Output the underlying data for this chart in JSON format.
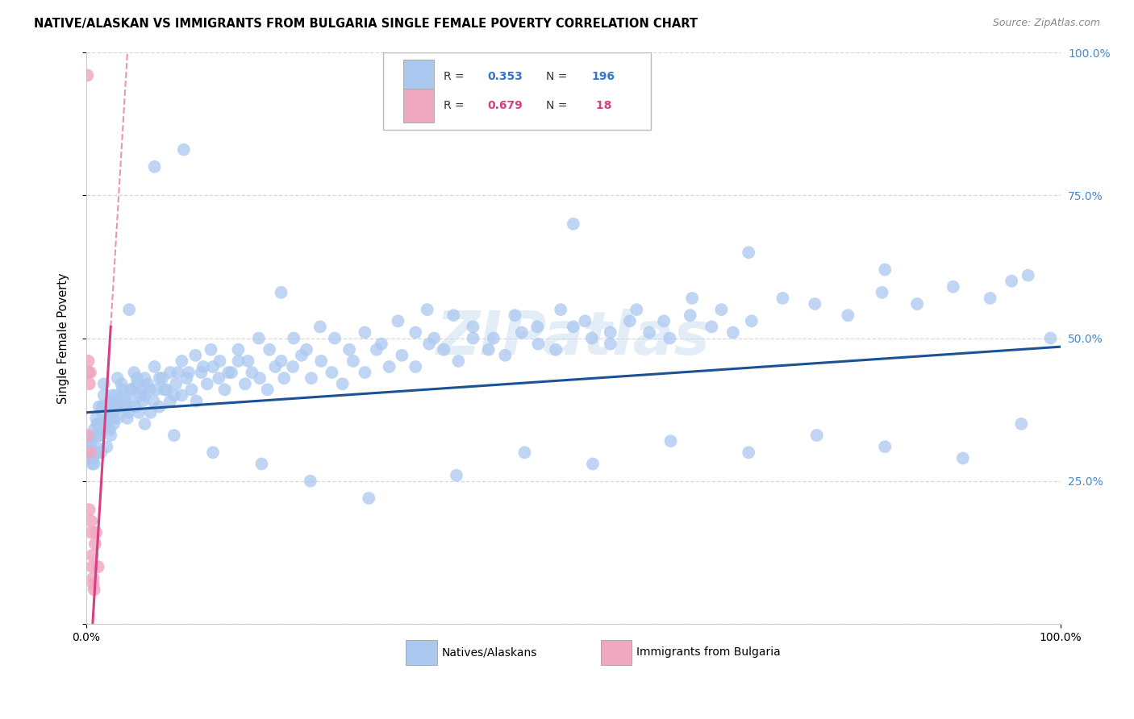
{
  "title": "NATIVE/ALASKAN VS IMMIGRANTS FROM BULGARIA SINGLE FEMALE POVERTY CORRELATION CHART",
  "source": "Source: ZipAtlas.com",
  "ylabel": "Single Female Poverty",
  "xlim": [
    0,
    1
  ],
  "ylim": [
    0,
    1
  ],
  "blue_color": "#aac8f0",
  "blue_line_color": "#1a5295",
  "pink_color": "#f0a8c0",
  "pink_line_color": "#d44080",
  "background_color": "#ffffff",
  "grid_color": "#d8d8d8",
  "watermark": "ZIPatlas",
  "blue_intercept": 0.37,
  "blue_slope": 0.115,
  "pink_intercept": -0.18,
  "pink_slope": 28.0,
  "blue_points_x": [
    0.001,
    0.002,
    0.003,
    0.004,
    0.005,
    0.006,
    0.006,
    0.007,
    0.008,
    0.009,
    0.01,
    0.011,
    0.012,
    0.013,
    0.014,
    0.015,
    0.016,
    0.017,
    0.018,
    0.02,
    0.021,
    0.022,
    0.024,
    0.025,
    0.026,
    0.027,
    0.028,
    0.03,
    0.032,
    0.034,
    0.036,
    0.038,
    0.04,
    0.042,
    0.044,
    0.046,
    0.048,
    0.05,
    0.052,
    0.054,
    0.056,
    0.058,
    0.06,
    0.063,
    0.066,
    0.069,
    0.072,
    0.075,
    0.078,
    0.082,
    0.086,
    0.09,
    0.094,
    0.098,
    0.103,
    0.108,
    0.113,
    0.118,
    0.124,
    0.13,
    0.136,
    0.142,
    0.149,
    0.156,
    0.163,
    0.17,
    0.178,
    0.186,
    0.194,
    0.203,
    0.212,
    0.221,
    0.231,
    0.241,
    0.252,
    0.263,
    0.274,
    0.286,
    0.298,
    0.311,
    0.324,
    0.338,
    0.352,
    0.367,
    0.382,
    0.397,
    0.413,
    0.43,
    0.447,
    0.464,
    0.482,
    0.5,
    0.519,
    0.538,
    0.558,
    0.578,
    0.599,
    0.62,
    0.642,
    0.664,
    0.005,
    0.008,
    0.01,
    0.012,
    0.014,
    0.016,
    0.018,
    0.02,
    0.022,
    0.024,
    0.026,
    0.028,
    0.03,
    0.032,
    0.035,
    0.037,
    0.04,
    0.043,
    0.046,
    0.049,
    0.052,
    0.056,
    0.06,
    0.065,
    0.07,
    0.075,
    0.08,
    0.086,
    0.092,
    0.098,
    0.105,
    0.112,
    0.12,
    0.128,
    0.137,
    0.146,
    0.156,
    0.166,
    0.177,
    0.188,
    0.2,
    0.213,
    0.226,
    0.24,
    0.255,
    0.27,
    0.286,
    0.303,
    0.32,
    0.338,
    0.357,
    0.377,
    0.397,
    0.418,
    0.44,
    0.463,
    0.487,
    0.512,
    0.538,
    0.565,
    0.593,
    0.622,
    0.652,
    0.683,
    0.715,
    0.748,
    0.782,
    0.817,
    0.853,
    0.89,
    0.928,
    0.967,
    0.003,
    0.006,
    0.015,
    0.025,
    0.06,
    0.09,
    0.13,
    0.18,
    0.23,
    0.29,
    0.38,
    0.45,
    0.52,
    0.6,
    0.68,
    0.75,
    0.82,
    0.9,
    0.96,
    0.99,
    0.07,
    0.1,
    0.2,
    0.35,
    0.5,
    0.68,
    0.82,
    0.95
  ],
  "blue_points_y": [
    0.32,
    0.3,
    0.29,
    0.31,
    0.3,
    0.28,
    0.33,
    0.29,
    0.28,
    0.3,
    0.31,
    0.35,
    0.3,
    0.38,
    0.33,
    0.3,
    0.38,
    0.34,
    0.42,
    0.35,
    0.31,
    0.36,
    0.34,
    0.33,
    0.4,
    0.37,
    0.35,
    0.39,
    0.36,
    0.38,
    0.42,
    0.4,
    0.38,
    0.36,
    0.55,
    0.41,
    0.39,
    0.38,
    0.43,
    0.37,
    0.41,
    0.39,
    0.4,
    0.42,
    0.37,
    0.39,
    0.41,
    0.38,
    0.43,
    0.41,
    0.39,
    0.4,
    0.44,
    0.4,
    0.43,
    0.41,
    0.39,
    0.44,
    0.42,
    0.45,
    0.43,
    0.41,
    0.44,
    0.46,
    0.42,
    0.44,
    0.43,
    0.41,
    0.45,
    0.43,
    0.45,
    0.47,
    0.43,
    0.46,
    0.44,
    0.42,
    0.46,
    0.44,
    0.48,
    0.45,
    0.47,
    0.45,
    0.49,
    0.48,
    0.46,
    0.5,
    0.48,
    0.47,
    0.51,
    0.49,
    0.48,
    0.52,
    0.5,
    0.49,
    0.53,
    0.51,
    0.5,
    0.54,
    0.52,
    0.51,
    0.32,
    0.34,
    0.36,
    0.35,
    0.33,
    0.37,
    0.4,
    0.38,
    0.36,
    0.39,
    0.38,
    0.36,
    0.4,
    0.43,
    0.38,
    0.41,
    0.39,
    0.37,
    0.41,
    0.44,
    0.42,
    0.4,
    0.43,
    0.41,
    0.45,
    0.43,
    0.41,
    0.44,
    0.42,
    0.46,
    0.44,
    0.47,
    0.45,
    0.48,
    0.46,
    0.44,
    0.48,
    0.46,
    0.5,
    0.48,
    0.46,
    0.5,
    0.48,
    0.52,
    0.5,
    0.48,
    0.51,
    0.49,
    0.53,
    0.51,
    0.5,
    0.54,
    0.52,
    0.5,
    0.54,
    0.52,
    0.55,
    0.53,
    0.51,
    0.55,
    0.53,
    0.57,
    0.55,
    0.53,
    0.57,
    0.56,
    0.54,
    0.58,
    0.56,
    0.59,
    0.57,
    0.61,
    0.32,
    0.3,
    0.34,
    0.36,
    0.35,
    0.33,
    0.3,
    0.28,
    0.25,
    0.22,
    0.26,
    0.3,
    0.28,
    0.32,
    0.3,
    0.33,
    0.31,
    0.29,
    0.35,
    0.5,
    0.8,
    0.83,
    0.58,
    0.55,
    0.7,
    0.65,
    0.62,
    0.6
  ],
  "pink_points_x": [
    0.001,
    0.001,
    0.002,
    0.002,
    0.003,
    0.003,
    0.004,
    0.004,
    0.005,
    0.005,
    0.006,
    0.006,
    0.007,
    0.007,
    0.008,
    0.009,
    0.01,
    0.012
  ],
  "pink_points_y": [
    0.33,
    0.96,
    0.44,
    0.46,
    0.42,
    0.2,
    0.44,
    0.3,
    0.16,
    0.18,
    0.1,
    0.12,
    0.08,
    0.07,
    0.06,
    0.14,
    0.16,
    0.1
  ]
}
